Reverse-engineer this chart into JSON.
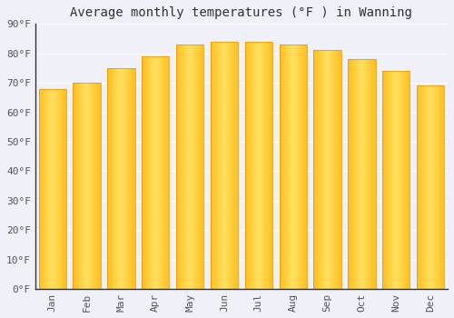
{
  "title": "Average monthly temperatures (°F ) in Wanning",
  "months": [
    "Jan",
    "Feb",
    "Mar",
    "Apr",
    "May",
    "Jun",
    "Jul",
    "Aug",
    "Sep",
    "Oct",
    "Nov",
    "Dec"
  ],
  "values": [
    68,
    70,
    75,
    79,
    83,
    84,
    84,
    83,
    81,
    78,
    74,
    69
  ],
  "bar_color_main": "#FFC020",
  "bar_color_light": "#FFD060",
  "bar_color_dark": "#E89000",
  "background_color": "#F0F0F8",
  "plot_bg_color": "#F0F0F8",
  "grid_color": "#FFFFFF",
  "ylim": [
    0,
    90
  ],
  "yticks": [
    0,
    10,
    20,
    30,
    40,
    50,
    60,
    70,
    80,
    90
  ],
  "ytick_labels": [
    "0°F",
    "10°F",
    "20°F",
    "30°F",
    "40°F",
    "50°F",
    "60°F",
    "70°F",
    "80°F",
    "90°F"
  ],
  "tick_font_size": 8,
  "title_font_size": 10,
  "font_color": "#555555",
  "title_color": "#333333",
  "spine_color": "#333333"
}
